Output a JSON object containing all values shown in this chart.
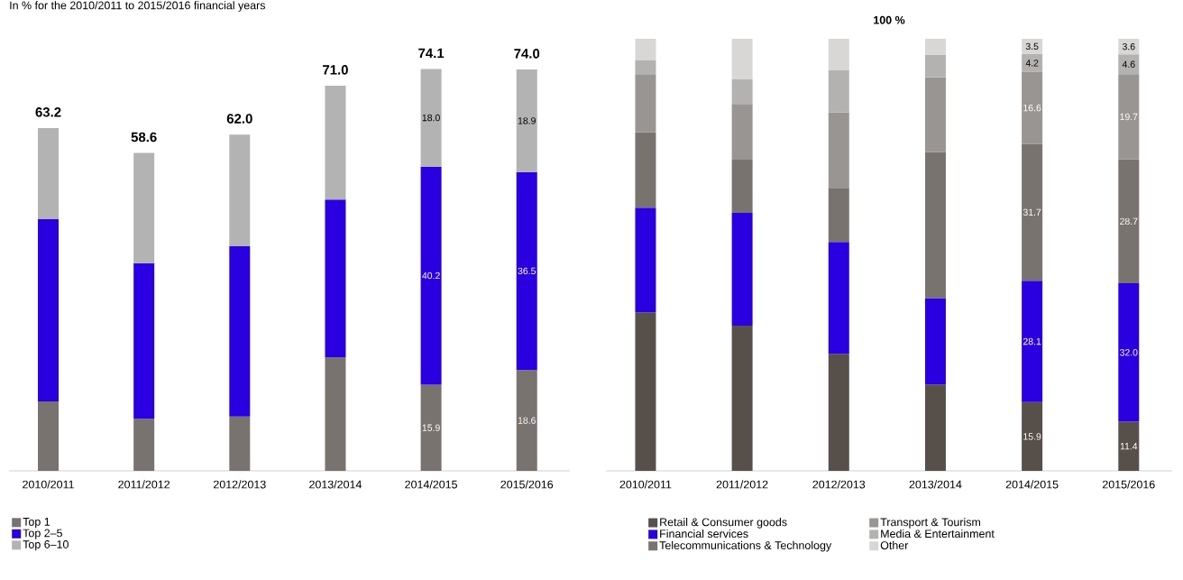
{
  "chart_data": [
    {
      "type": "bar",
      "stacked": true,
      "subtitle": "In % for the 2010/2011 to 2015/2016 financial years",
      "legend": "bottom",
      "categories": [
        "2010/2011",
        "2011/2012",
        "2012/2013",
        "2013/2014",
        "2014/2015",
        "2015/2016"
      ],
      "series": [
        {
          "name": "Top 1",
          "color": "#78736f",
          "values": [
            12.8,
            9.6,
            10.0,
            20.9,
            15.9,
            18.6
          ],
          "value_labels": [
            null,
            null,
            null,
            null,
            "15.9",
            "18.6"
          ]
        },
        {
          "name": "Top 2–5",
          "color": "#2b00e0",
          "values": [
            33.6,
            28.7,
            31.4,
            29.1,
            40.2,
            36.5
          ],
          "value_labels": [
            null,
            null,
            null,
            null,
            "40.2",
            "36.5"
          ]
        },
        {
          "name": "Top 6–10",
          "color": "#b3b3b3",
          "values": [
            16.8,
            20.3,
            20.6,
            21.0,
            18.0,
            18.9
          ],
          "value_labels": [
            null,
            null,
            null,
            null,
            "18.0",
            "18.9"
          ]
        }
      ],
      "totals": [
        "63.2",
        "58.6",
        "62.0",
        "71.0",
        "74.1",
        "74.0"
      ]
    },
    {
      "type": "bar",
      "stacked": true,
      "title": "100 %",
      "legend": "bottom",
      "categories": [
        "2010/2011",
        "2011/2012",
        "2012/2013",
        "2013/2014",
        "2014/2015",
        "2015/2016"
      ],
      "series": [
        {
          "name": "Retail & Consumer goods",
          "color": "#564f4a",
          "values": [
            36.7,
            33.6,
            27.1,
            20.0,
            15.9,
            11.4
          ],
          "value_labels": [
            null,
            null,
            null,
            null,
            "15.9",
            "11.4"
          ]
        },
        {
          "name": "Financial services",
          "color": "#2b00e0",
          "values": [
            24.2,
            26.1,
            25.9,
            20.0,
            28.1,
            32.0
          ],
          "value_labels": [
            null,
            null,
            null,
            null,
            "28.1",
            "32.0"
          ]
        },
        {
          "name": "Telecommunications & Technology",
          "color": "#78736f",
          "values": [
            17.5,
            12.5,
            12.5,
            33.8,
            31.7,
            28.7
          ],
          "value_labels": [
            null,
            null,
            null,
            null,
            "31.7",
            "28.7"
          ]
        },
        {
          "name": "Transport & Tourism",
          "color": "#989593",
          "values": [
            13.4,
            12.7,
            17.5,
            17.3,
            16.6,
            19.7
          ],
          "value_labels": [
            null,
            null,
            null,
            null,
            "16.6",
            "19.7"
          ]
        },
        {
          "name": "Media & Entertainment",
          "color": "#b4b2b0",
          "values": [
            3.3,
            5.8,
            9.8,
            5.2,
            4.2,
            4.6
          ],
          "value_labels": [
            null,
            null,
            null,
            null,
            "4.2",
            "4.6"
          ]
        },
        {
          "name": "Other",
          "color": "#d8d7d6",
          "values": [
            4.9,
            9.3,
            7.2,
            3.7,
            3.5,
            3.6
          ],
          "value_labels": [
            null,
            null,
            null,
            null,
            "3.5",
            "3.6"
          ]
        }
      ]
    }
  ]
}
